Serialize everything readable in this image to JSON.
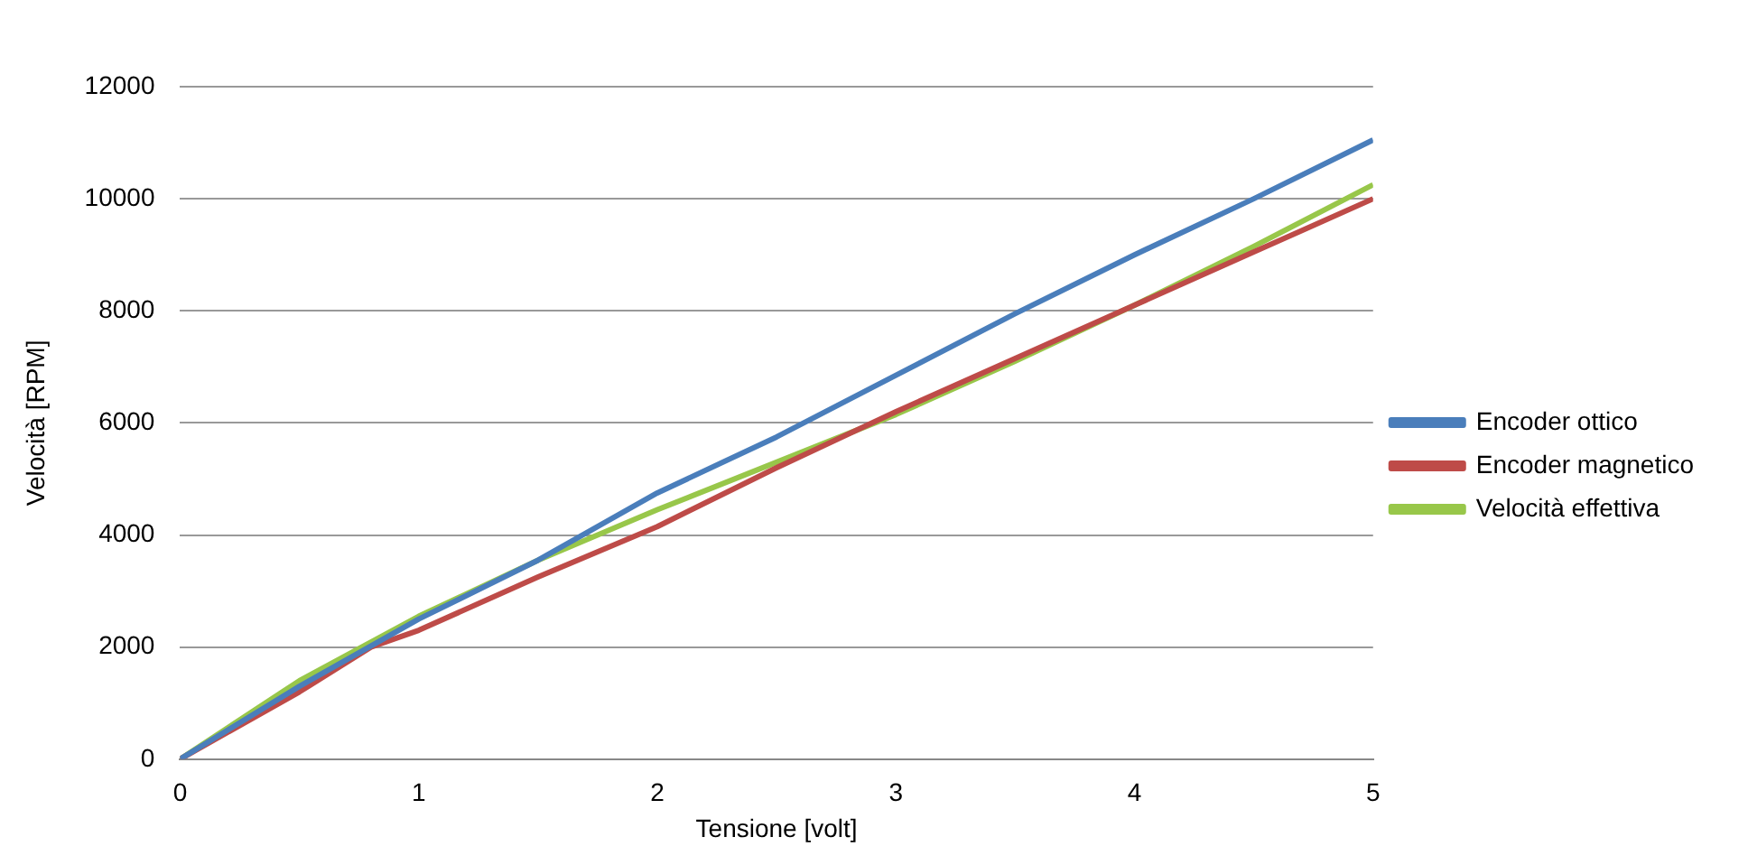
{
  "chart_data": {
    "type": "line",
    "xlabel": "Tensione [volt]",
    "ylabel": "Velocità [RPM]",
    "xlim": [
      0,
      5
    ],
    "xticks": [
      0,
      1,
      2,
      3,
      4,
      5
    ],
    "ylim": [
      0,
      12000
    ],
    "yticks": [
      0,
      2000,
      4000,
      6000,
      8000,
      10000,
      12000
    ],
    "grid": "y",
    "legend": "right",
    "marker": "none",
    "line_style": "solid",
    "series": [
      {
        "name": "Encoder ottico",
        "color": "#4a7ebb",
        "x": [
          0,
          0.5,
          1,
          1.5,
          2,
          2.5,
          3,
          3.5,
          4,
          4.5,
          5
        ],
        "values": [
          0,
          1300,
          2500,
          3550,
          4750,
          5750,
          6850,
          7950,
          9000,
          10000,
          11050
        ]
      },
      {
        "name": "Encoder magnetico",
        "color": "#be4b48",
        "x": [
          0,
          0.5,
          0.8,
          1,
          1.5,
          2,
          2.5,
          3,
          3.5,
          4,
          4.5,
          5
        ],
        "values": [
          0,
          1200,
          2000,
          2300,
          3250,
          4150,
          5200,
          6200,
          7150,
          8100,
          9050,
          10000
        ]
      },
      {
        "name": "Velocità effettiva",
        "color": "#98c74a",
        "x": [
          0,
          0.5,
          1,
          1.5,
          2,
          2.5,
          3,
          3.5,
          4,
          4.5,
          5
        ],
        "values": [
          0,
          1400,
          2550,
          3550,
          4450,
          5300,
          6150,
          7100,
          8100,
          9150,
          10250
        ]
      }
    ]
  }
}
